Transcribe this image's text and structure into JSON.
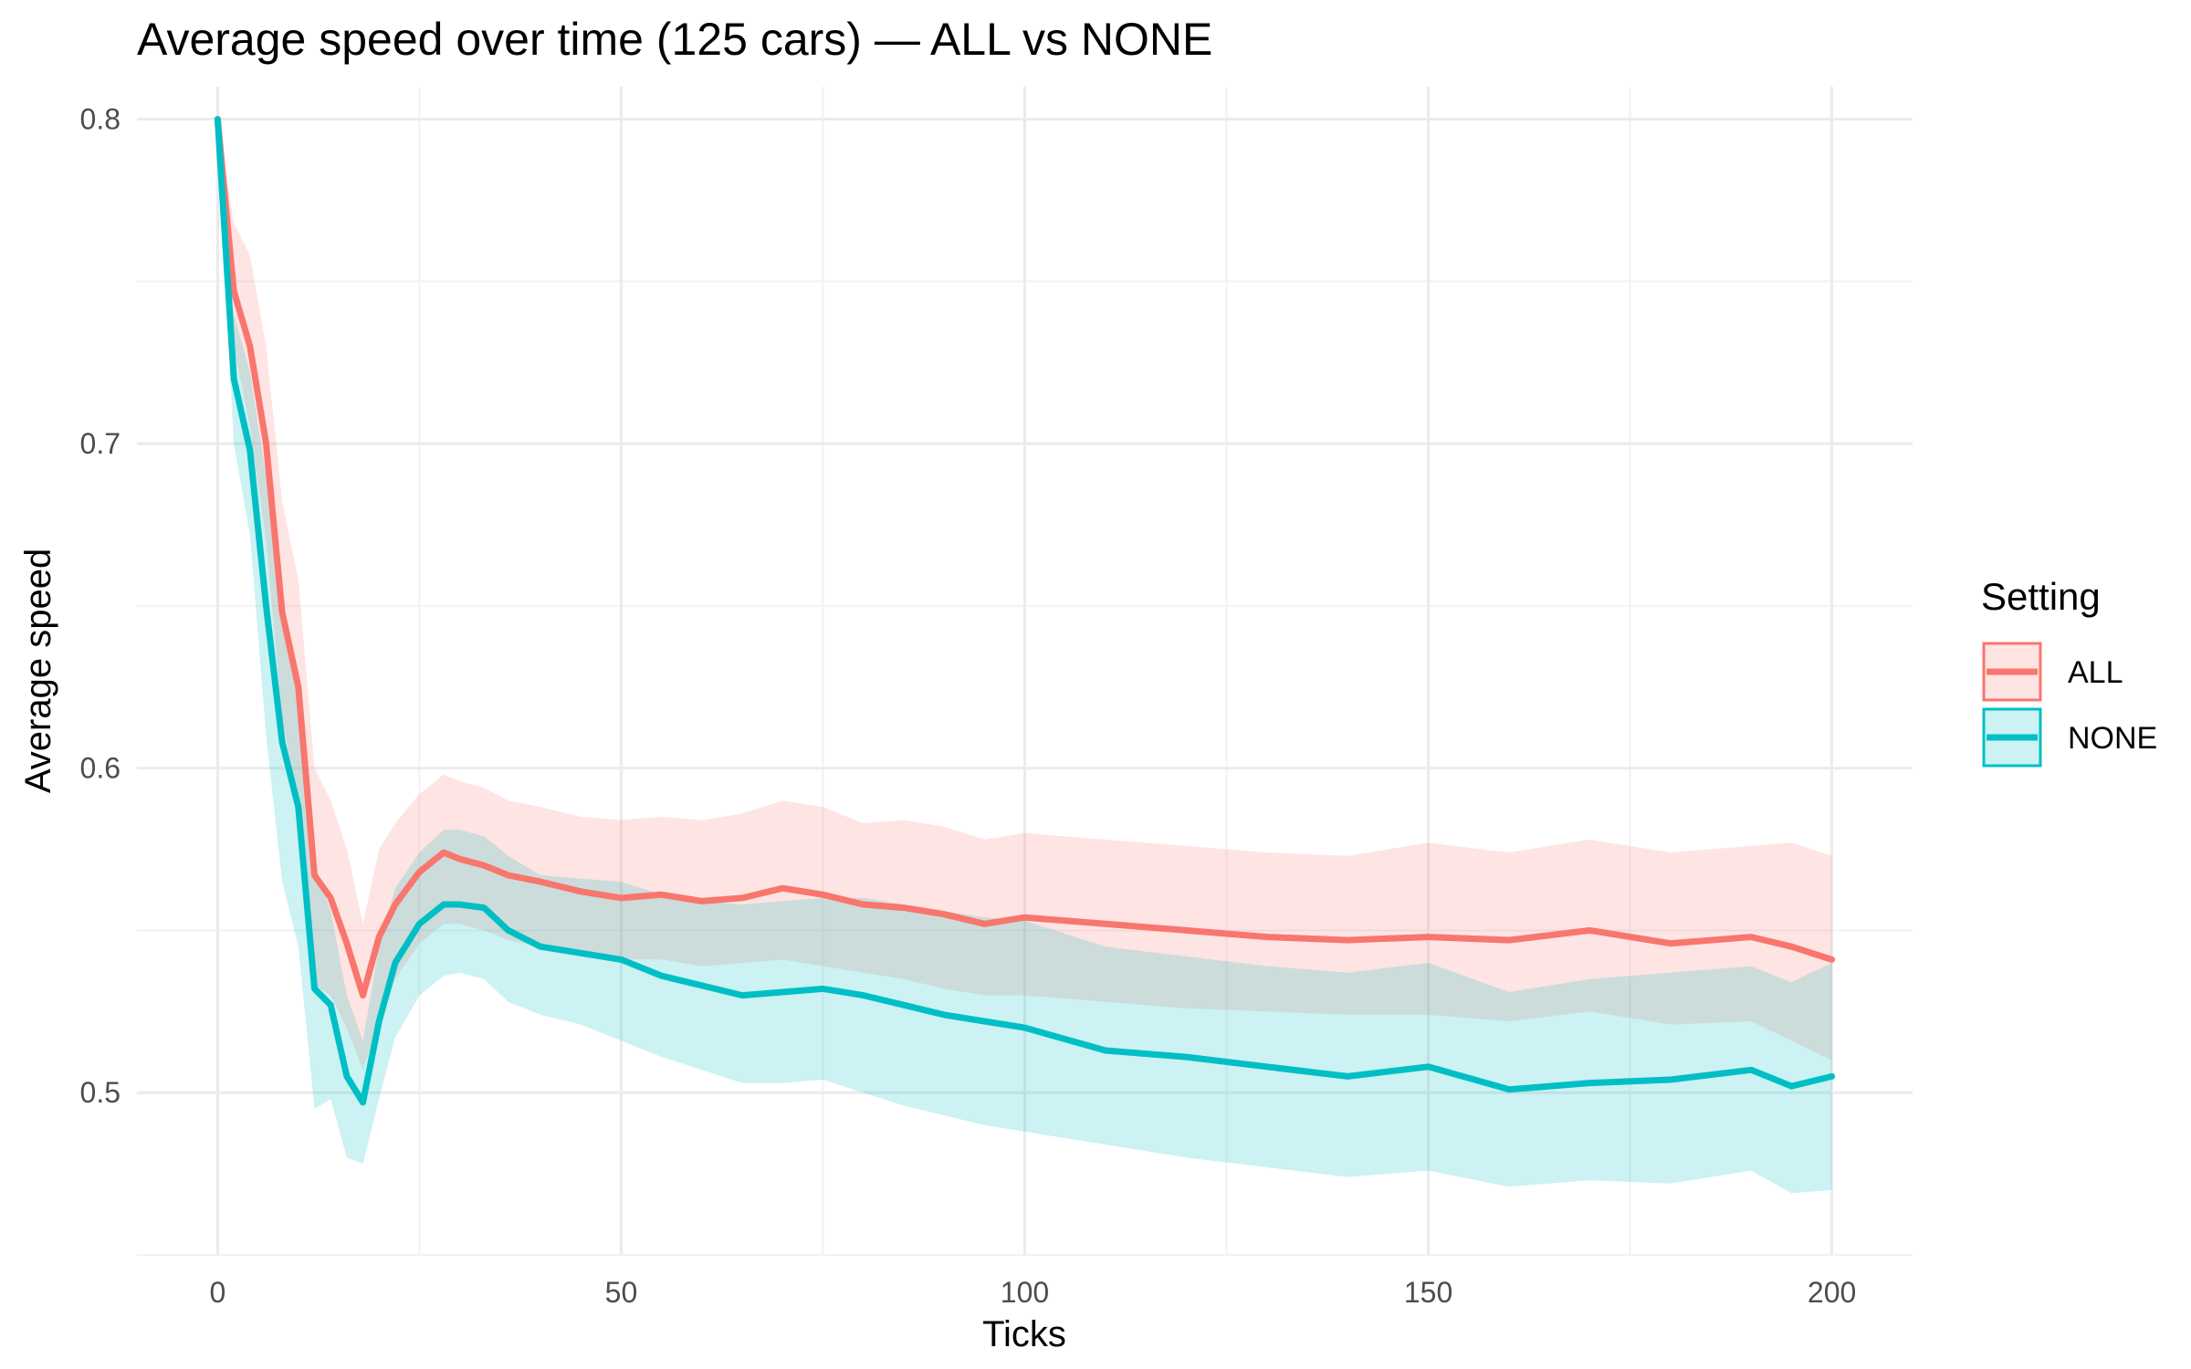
{
  "chart_data": {
    "type": "line",
    "title": "Average speed over time (125 cars) — ALL vs NONE",
    "xlabel": "Ticks",
    "ylabel": "Average speed",
    "xlim": [
      -10,
      210
    ],
    "ylim": [
      0.45,
      0.81
    ],
    "x_ticks": [
      0,
      50,
      100,
      150,
      200
    ],
    "x_tick_labels": [
      "0",
      "50",
      "100",
      "150",
      "200"
    ],
    "y_ticks": [
      0.5,
      0.6,
      0.7,
      0.8
    ],
    "y_tick_labels": [
      "0.5",
      "0.6",
      "0.7",
      "0.8"
    ],
    "grid": true,
    "legend": {
      "title": "Setting",
      "position": "right"
    },
    "series": [
      {
        "name": "ALL",
        "color": "#F8766D",
        "x": [
          0,
          2,
          4,
          6,
          8,
          10,
          12,
          14,
          16,
          18,
          20,
          22,
          25,
          28,
          30,
          33,
          36,
          40,
          45,
          50,
          55,
          60,
          65,
          70,
          75,
          80,
          85,
          90,
          95,
          100,
          110,
          120,
          130,
          140,
          150,
          160,
          170,
          180,
          190,
          195,
          200
        ],
        "values": [
          0.8,
          0.747,
          0.73,
          0.7,
          0.648,
          0.625,
          0.567,
          0.56,
          0.546,
          0.53,
          0.548,
          0.558,
          0.568,
          0.574,
          0.572,
          0.57,
          0.567,
          0.565,
          0.562,
          0.56,
          0.561,
          0.559,
          0.56,
          0.563,
          0.561,
          0.558,
          0.557,
          0.555,
          0.552,
          0.554,
          0.552,
          0.55,
          0.548,
          0.547,
          0.548,
          0.547,
          0.55,
          0.546,
          0.548,
          0.545,
          0.541
        ],
        "lower": [
          0.8,
          0.73,
          0.705,
          0.67,
          0.615,
          0.59,
          0.533,
          0.53,
          0.52,
          0.507,
          0.522,
          0.535,
          0.546,
          0.552,
          0.552,
          0.55,
          0.547,
          0.545,
          0.543,
          0.541,
          0.541,
          0.539,
          0.54,
          0.541,
          0.539,
          0.537,
          0.535,
          0.532,
          0.53,
          0.53,
          0.528,
          0.526,
          0.525,
          0.524,
          0.524,
          0.522,
          0.525,
          0.521,
          0.522,
          0.516,
          0.51
        ],
        "upper": [
          0.8,
          0.768,
          0.758,
          0.73,
          0.682,
          0.658,
          0.6,
          0.59,
          0.575,
          0.552,
          0.575,
          0.583,
          0.592,
          0.598,
          0.596,
          0.594,
          0.59,
          0.588,
          0.585,
          0.584,
          0.585,
          0.584,
          0.586,
          0.59,
          0.588,
          0.583,
          0.584,
          0.582,
          0.578,
          0.58,
          0.578,
          0.576,
          0.574,
          0.573,
          0.577,
          0.574,
          0.578,
          0.574,
          0.576,
          0.577,
          0.573
        ]
      },
      {
        "name": "NONE",
        "color": "#00BFC4",
        "x": [
          0,
          2,
          4,
          6,
          8,
          10,
          12,
          14,
          16,
          18,
          20,
          22,
          25,
          28,
          30,
          33,
          36,
          40,
          45,
          50,
          55,
          60,
          65,
          70,
          75,
          80,
          85,
          90,
          95,
          100,
          110,
          120,
          130,
          140,
          150,
          160,
          170,
          180,
          190,
          195,
          200
        ],
        "values": [
          0.8,
          0.72,
          0.698,
          0.65,
          0.608,
          0.588,
          0.532,
          0.527,
          0.505,
          0.497,
          0.522,
          0.54,
          0.552,
          0.558,
          0.558,
          0.557,
          0.55,
          0.545,
          0.543,
          0.541,
          0.536,
          0.533,
          0.53,
          0.531,
          0.532,
          0.53,
          0.527,
          0.524,
          0.522,
          0.52,
          0.513,
          0.511,
          0.508,
          0.505,
          0.508,
          0.501,
          0.503,
          0.504,
          0.507,
          0.502,
          0.505
        ],
        "lower": [
          0.8,
          0.7,
          0.672,
          0.61,
          0.565,
          0.545,
          0.495,
          0.498,
          0.48,
          0.478,
          0.498,
          0.517,
          0.53,
          0.536,
          0.537,
          0.535,
          0.528,
          0.524,
          0.521,
          0.516,
          0.511,
          0.507,
          0.503,
          0.503,
          0.504,
          0.5,
          0.496,
          0.493,
          0.49,
          0.488,
          0.484,
          0.48,
          0.477,
          0.474,
          0.476,
          0.471,
          0.473,
          0.472,
          0.476,
          0.469,
          0.47
        ],
        "upper": [
          0.8,
          0.74,
          0.722,
          0.69,
          0.65,
          0.63,
          0.57,
          0.556,
          0.53,
          0.516,
          0.545,
          0.563,
          0.574,
          0.581,
          0.581,
          0.579,
          0.573,
          0.567,
          0.566,
          0.565,
          0.561,
          0.559,
          0.558,
          0.559,
          0.56,
          0.56,
          0.558,
          0.556,
          0.554,
          0.553,
          0.545,
          0.542,
          0.539,
          0.537,
          0.54,
          0.531,
          0.535,
          0.537,
          0.539,
          0.534,
          0.54
        ]
      }
    ]
  }
}
